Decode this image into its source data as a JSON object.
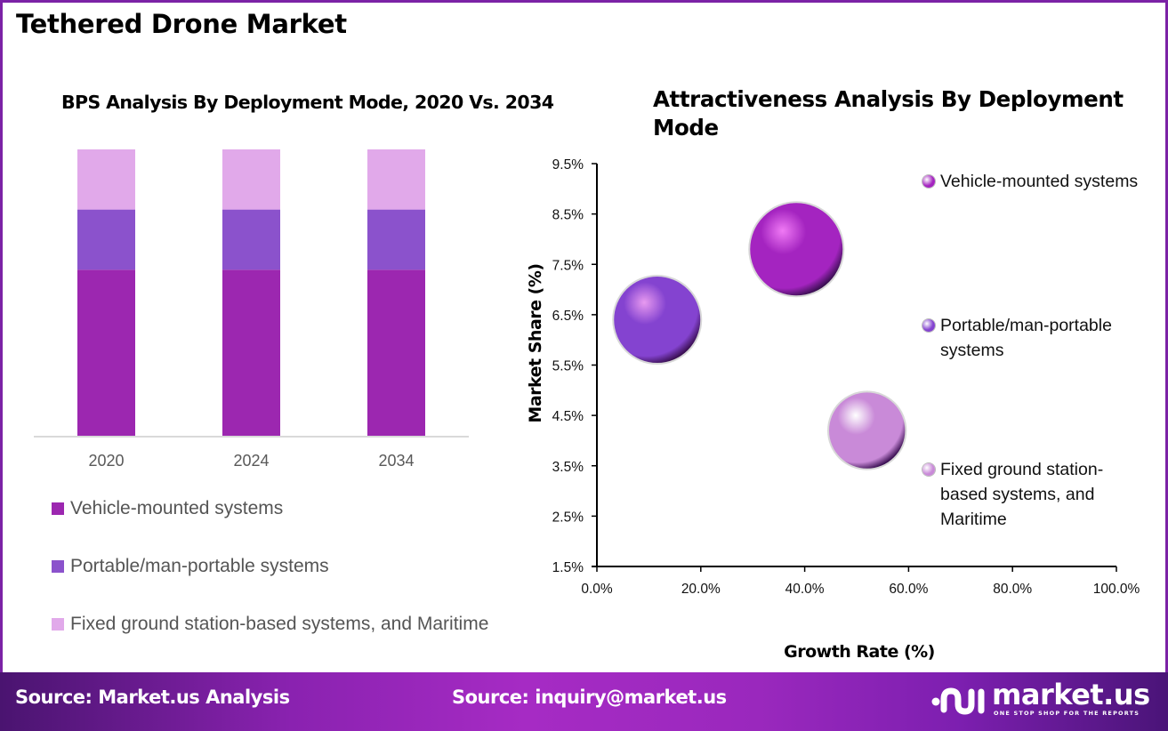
{
  "page": {
    "title": "Tethered Drone Market",
    "frame_color": "#7b22a6"
  },
  "footer": {
    "source_left": "Source: Market.us Analysis",
    "source_center": "Source: inquiry@market.us",
    "logo_text": "market.us",
    "logo_tagline": "ONE STOP SHOP FOR THE REPORTS",
    "logo_icon": "market-us-logo-icon"
  },
  "chart_data": [
    {
      "type": "bar",
      "stacked": true,
      "title": "BPS Analysis By Deployment Mode, 2020 Vs. 2034",
      "categories": [
        "2020",
        "2024",
        "2034"
      ],
      "xlabel": "",
      "ylabel": "",
      "ylim": [
        0,
        100
      ],
      "grid": false,
      "legend_position": "bottom",
      "series": [
        {
          "name": "Vehicle-mounted systems",
          "color": "#9c27b0",
          "values": [
            58,
            58,
            58
          ]
        },
        {
          "name": "Portable/man-portable systems",
          "color": "#8b52cc",
          "values": [
            21,
            21,
            21
          ]
        },
        {
          "name": "Fixed ground station-based systems, and Maritime",
          "color": "#e1a9ea",
          "values": [
            21,
            21,
            21
          ]
        }
      ]
    },
    {
      "type": "scatter",
      "subtype": "bubble",
      "title": "Attractiveness Analysis By Deployment Mode",
      "xlabel": "Growth Rate (%)",
      "ylabel": "Market Share (%)",
      "xlim": [
        0,
        100
      ],
      "ylim": [
        1.5,
        9.5
      ],
      "x_ticks": [
        "0.0%",
        "20.0%",
        "40.0%",
        "60.0%",
        "80.0%",
        "100.0%"
      ],
      "x_tick_values": [
        0,
        20,
        40,
        60,
        80,
        100
      ],
      "y_ticks": [
        "9.5%",
        "8.5%",
        "7.5%",
        "6.5%",
        "5.5%",
        "4.5%",
        "3.5%",
        "2.5%",
        "1.5%"
      ],
      "y_tick_values": [
        9.5,
        8.5,
        7.5,
        6.5,
        5.5,
        4.5,
        3.5,
        2.5,
        1.5
      ],
      "grid": false,
      "legend_position": "right",
      "points": [
        {
          "name": "Vehicle-mounted systems",
          "x": 38.4,
          "y": 7.8,
          "size": 58,
          "color": "#a424c0",
          "highlight": "#f07af5"
        },
        {
          "name": "Portable/man-portable systems",
          "x": 11.6,
          "y": 6.4,
          "size": 21,
          "color": "#8443d0",
          "highlight": "#e89af0"
        },
        {
          "name": "Fixed ground station-based systems, and Maritime",
          "x": 52.0,
          "y": 4.2,
          "size": 21,
          "color": "#c98ad8",
          "highlight": "#ffffff"
        }
      ]
    }
  ]
}
